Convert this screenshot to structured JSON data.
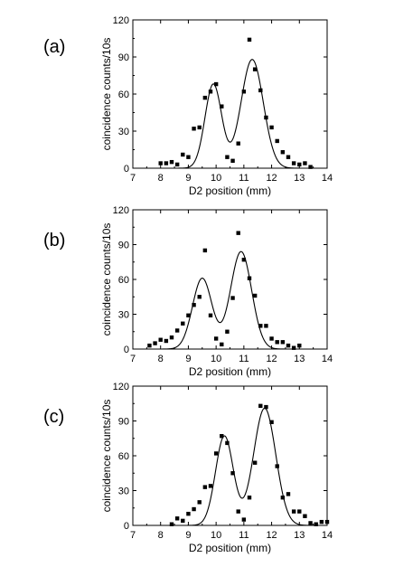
{
  "chart_data": [
    {
      "type": "scatter",
      "panel_label": "(a)",
      "xlabel": "D2 position (mm)",
      "ylabel": "coincidence counts/10s",
      "xlim": [
        7,
        14
      ],
      "ylim": [
        0,
        120
      ],
      "xticks": [
        "7",
        "8",
        "9",
        "10",
        "11",
        "12",
        "13",
        "14"
      ],
      "yticks": [
        "0",
        "30",
        "60",
        "90",
        "120"
      ],
      "points": [
        [
          8.0,
          4
        ],
        [
          8.2,
          4
        ],
        [
          8.4,
          5
        ],
        [
          8.6,
          3
        ],
        [
          8.8,
          11
        ],
        [
          9.0,
          9
        ],
        [
          9.2,
          32
        ],
        [
          9.4,
          33
        ],
        [
          9.6,
          57
        ],
        [
          9.8,
          62
        ],
        [
          10.0,
          68
        ],
        [
          10.2,
          50
        ],
        [
          10.4,
          9
        ],
        [
          10.6,
          6
        ],
        [
          10.8,
          20
        ],
        [
          11.0,
          62
        ],
        [
          11.2,
          104
        ],
        [
          11.4,
          80
        ],
        [
          11.6,
          63
        ],
        [
          11.8,
          41
        ],
        [
          12.0,
          33
        ],
        [
          12.2,
          22
        ],
        [
          12.4,
          13
        ],
        [
          12.6,
          9
        ],
        [
          12.8,
          4
        ],
        [
          13.0,
          3
        ],
        [
          13.2,
          4
        ],
        [
          13.4,
          1
        ]
      ],
      "fit": {
        "peaks": [
          [
            9.9,
            68,
            0.3
          ],
          [
            11.3,
            88,
            0.4
          ]
        ],
        "x_range": [
          8.0,
          13.4
        ]
      }
    },
    {
      "type": "scatter",
      "panel_label": "(b)",
      "xlabel": "D2 position (mm)",
      "ylabel": "coincidence counts/10s",
      "xlim": [
        7,
        14
      ],
      "ylim": [
        0,
        120
      ],
      "xticks": [
        "7",
        "8",
        "9",
        "10",
        "11",
        "12",
        "13",
        "14"
      ],
      "yticks": [
        "0",
        "30",
        "60",
        "90",
        "120"
      ],
      "points": [
        [
          7.6,
          3
        ],
        [
          7.8,
          5
        ],
        [
          8.0,
          8
        ],
        [
          8.2,
          7
        ],
        [
          8.4,
          10
        ],
        [
          8.6,
          16
        ],
        [
          8.8,
          22
        ],
        [
          9.0,
          29
        ],
        [
          9.2,
          38
        ],
        [
          9.4,
          45
        ],
        [
          9.6,
          85
        ],
        [
          9.8,
          29
        ],
        [
          10.0,
          9
        ],
        [
          10.2,
          4
        ],
        [
          10.4,
          15
        ],
        [
          10.6,
          44
        ],
        [
          10.8,
          100
        ],
        [
          11.0,
          77
        ],
        [
          11.2,
          61
        ],
        [
          11.4,
          46
        ],
        [
          11.6,
          20
        ],
        [
          11.8,
          20
        ],
        [
          12.0,
          9
        ],
        [
          12.2,
          6
        ],
        [
          12.4,
          6
        ],
        [
          12.6,
          3
        ],
        [
          12.8,
          1
        ],
        [
          13.0,
          3
        ]
      ],
      "fit": {
        "peaks": [
          [
            9.5,
            61,
            0.35
          ],
          [
            10.9,
            84,
            0.38
          ]
        ],
        "x_range": [
          7.6,
          13.0
        ]
      }
    },
    {
      "type": "scatter",
      "panel_label": "(c)",
      "xlabel": "D2 position (mm)",
      "ylabel": "coincidence counts/10s",
      "xlim": [
        7,
        14
      ],
      "ylim": [
        0,
        120
      ],
      "xticks": [
        "7",
        "8",
        "9",
        "10",
        "11",
        "12",
        "13",
        "14"
      ],
      "yticks": [
        "0",
        "30",
        "60",
        "90",
        "120"
      ],
      "points": [
        [
          8.4,
          1
        ],
        [
          8.6,
          6
        ],
        [
          8.8,
          4
        ],
        [
          9.0,
          10
        ],
        [
          9.2,
          14
        ],
        [
          9.4,
          20
        ],
        [
          9.6,
          33
        ],
        [
          9.8,
          34
        ],
        [
          10.0,
          62
        ],
        [
          10.2,
          77
        ],
        [
          10.4,
          71
        ],
        [
          10.6,
          45
        ],
        [
          10.8,
          12
        ],
        [
          11.0,
          5
        ],
        [
          11.2,
          24
        ],
        [
          11.4,
          54
        ],
        [
          11.6,
          103
        ],
        [
          11.8,
          102
        ],
        [
          12.0,
          89
        ],
        [
          12.2,
          51
        ],
        [
          12.4,
          24
        ],
        [
          12.6,
          27
        ],
        [
          12.8,
          12
        ],
        [
          13.0,
          12
        ],
        [
          13.2,
          8
        ],
        [
          13.4,
          2
        ],
        [
          13.6,
          1
        ],
        [
          13.8,
          3
        ],
        [
          14.0,
          3
        ]
      ],
      "fit": {
        "peaks": [
          [
            10.3,
            77,
            0.32
          ],
          [
            11.75,
            101,
            0.4
          ]
        ],
        "x_range": [
          8.3,
          14.0
        ]
      }
    }
  ],
  "colors": {
    "axis": "#000000",
    "marker": "#000000",
    "fit_line": "#000000"
  }
}
